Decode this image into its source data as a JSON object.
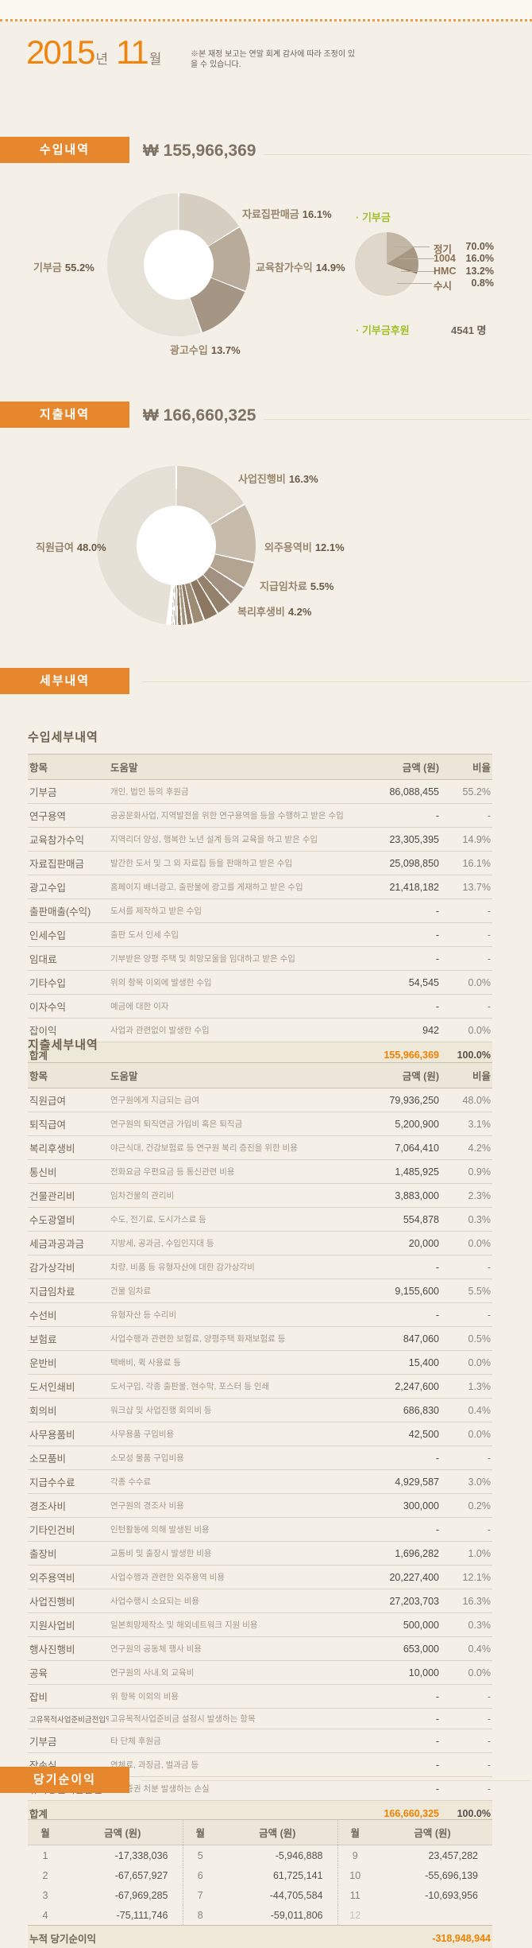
{
  "header": {
    "year": "2015",
    "year_suffix": "년",
    "month": "11",
    "month_suffix": "월",
    "note": "※본 재정 보고는 연말 회계 감사에 따라 조정이 있을 수 있습니다."
  },
  "income": {
    "heading": "수입내역",
    "total": "₩ 155,966,369",
    "donors_pie_label": "· 기부금",
    "donors_count_label": "· 기부금후원",
    "donors_count": "4541 명"
  },
  "expense": {
    "heading": "지출내역",
    "total": "₩ 166,660,325"
  },
  "details": {
    "heading": "세부내역",
    "income_title": "수입세부내역",
    "expense_title": "지출세부내역",
    "columns": [
      "항목",
      "도움말",
      "금액 (원)",
      "비율"
    ],
    "income_rows": [
      [
        "기부금",
        "개인, 법인 등의 후원금",
        "86,088,455",
        "55.2%"
      ],
      [
        "연구용역",
        "공공문화사업, 지역발전을 위한 연구용역을 등을 수행하고 받은 수입",
        "-",
        "-"
      ],
      [
        "교육참가수익",
        "지역리더 양성, 행복한 노년 설계 등의 교육을 하고 받은 수입",
        "23,305,395",
        "14.9%"
      ],
      [
        "자료집판매금",
        "발간한 도서 및 그 외 자료집 등을 판매하고 받은 수입",
        "25,098,850",
        "16.1%"
      ],
      [
        "광고수입",
        "홈페이지 배너광고, 출판물에 광고를 게재하고 받은 수입",
        "21,418,182",
        "13.7%"
      ],
      [
        "출판매출(수익)",
        "도서를 제작하고 받은 수입",
        "-",
        "-"
      ],
      [
        "인세수입",
        "출판 도서 인세 수입",
        "-",
        "-"
      ],
      [
        "임대료",
        "기부받은 양평 주택 및 희망모울을 임대하고 받은 수입",
        "-",
        "-"
      ],
      [
        "기타수입",
        "위의 항목 이외에 발생한 수입",
        "54,545",
        "0.0%"
      ],
      [
        "이자수익",
        "예금에 대한 이자",
        "-",
        "-"
      ],
      [
        "잡이익",
        "사업과 관련없이 발생한 수입",
        "942",
        "0.0%"
      ]
    ],
    "income_total": [
      "합계",
      "155,966,369",
      "100.0%"
    ],
    "expense_rows": [
      [
        "직원급여",
        "연구원에게 지급되는 급여",
        "79,936,250",
        "48.0%"
      ],
      [
        "퇴직급여",
        "연구원의 퇴직연금 가입비 혹은 퇴직금",
        "5,200,900",
        "3.1%"
      ],
      [
        "복리후생비",
        "야근식대, 건강보험료 등 연구원 복리 증진을 위한 비용",
        "7,064,410",
        "4.2%"
      ],
      [
        "통신비",
        "전화요금 우편요금 등 통신관련 비용",
        "1,485,925",
        "0.9%"
      ],
      [
        "건물관리비",
        "임차건물의 관리비",
        "3,883,000",
        "2.3%"
      ],
      [
        "수도광열비",
        "수도, 전기료, 도시가스료 등",
        "554,878",
        "0.3%"
      ],
      [
        "세금과공과금",
        "지방세, 공과금, 수입인지대 등",
        "20,000",
        "0.0%"
      ],
      [
        "감가상각비",
        "차량, 비품 등 유형자산에 대한 감가상각비",
        "-",
        "-"
      ],
      [
        "지급임차료",
        "건물 임차료",
        "9,155,600",
        "5.5%"
      ],
      [
        "수선비",
        "유형자산 등 수리비",
        "-",
        "-"
      ],
      [
        "보험료",
        "사업수행과 관련한 보험료, 양평주택 화재보험료 등",
        "847,060",
        "0.5%"
      ],
      [
        "운반비",
        "택배비, 퀵 사용료 등",
        "15,400",
        "0.0%"
      ],
      [
        "도서인쇄비",
        "도서구입, 각종 출판물, 현수막, 포스터 등 인쇄",
        "2,247,600",
        "1.3%"
      ],
      [
        "회의비",
        "워크샵 및 사업진행 회의비 등",
        "686,830",
        "0.4%"
      ],
      [
        "사무용품비",
        "사무용품 구입비용",
        "42,500",
        "0.0%"
      ],
      [
        "소모품비",
        "소모성 물품 구입비용",
        "-",
        "-"
      ],
      [
        "지급수수료",
        "각종 수수료",
        "4,929,587",
        "3.0%"
      ],
      [
        "경조사비",
        "연구원의 경조사 비용",
        "300,000",
        "0.2%"
      ],
      [
        "기타인건비",
        "인턴활동에 의해 발생된 비용",
        "-",
        "-"
      ],
      [
        "출장비",
        "교통비 및 출장시 발생한 비용",
        "1,696,282",
        "1.0%"
      ],
      [
        "외주용역비",
        "사업수행과 관련한 외주용역 비용",
        "20,227,400",
        "12.1%"
      ],
      [
        "사업진행비",
        "사업수행시 소요되는 비용",
        "27,203,703",
        "16.3%"
      ],
      [
        "지원사업비",
        "일본희망제작소 및 해외네트워크 지원 비용",
        "500,000",
        "0.3%"
      ],
      [
        "행사진행비",
        "연구원의 공동체 행사 비용",
        "653,000",
        "0.4%"
      ],
      [
        "공육",
        "연구원의 사내.외 교육비",
        "10,000",
        "0.0%"
      ],
      [
        "잡비",
        "위 항목 이외의 비용",
        "-",
        "-"
      ],
      [
        "고유목적사업준비금전입액",
        "고유목적사업준비금 설정시 발생하는 항목",
        "-",
        "-"
      ],
      [
        "기부금",
        "타 단체 후원금",
        "-",
        "-"
      ],
      [
        "잡손실",
        "연체료, 과징금, 벌과금 등",
        "-",
        "-"
      ],
      [
        "유가증권처분손실",
        "유가증권 처분 발생하는 손실",
        "-",
        "-"
      ]
    ],
    "expense_total": [
      "합계",
      "166,660,325",
      "100.0%"
    ]
  },
  "net": {
    "heading": "당기순이익",
    "columns": [
      "월",
      "금액 (원)",
      "월",
      "금액 (원)",
      "월",
      "금액 (원)"
    ],
    "rows": [
      [
        "1",
        "-17,338,036",
        "5",
        "-5,946,888",
        "9",
        "23,457,282"
      ],
      [
        "2",
        "-67,657,927",
        "6",
        "61,725,141",
        "10",
        "-55,696,139"
      ],
      [
        "3",
        "-67,969,285",
        "7",
        "-44,705,584",
        "11",
        "-10,693,956"
      ],
      [
        "4",
        "-75,111,746",
        "8",
        "-59,011,806",
        "12",
        ""
      ]
    ],
    "cumulative_label": "누적 당기순이익",
    "cumulative_value": "-318,948,944"
  },
  "colors": {
    "accent_orange": "#ee8511",
    "badge_orange": "#e6862d",
    "green": "#a0bf2c",
    "total_orange": "#ee8200",
    "background": "#f5f0e7"
  },
  "chart_data": [
    {
      "type": "donut",
      "title": "수입내역",
      "total_value": 155966369,
      "unit": "%",
      "categories": [
        "자료집판매금",
        "교육참가수익",
        "광고수입",
        "기부금"
      ],
      "values": [
        16.1,
        14.9,
        13.7,
        55.2
      ],
      "colors": [
        "#d6cec1",
        "#b9ab9a",
        "#a49585",
        "#e7e2d8"
      ],
      "rotate": 0,
      "gap": 0.5
    },
    {
      "type": "pie",
      "title": "기부금",
      "unit": "%",
      "categories": [
        "정기",
        "1004",
        "HMC",
        "수시"
      ],
      "values": [
        70.0,
        16.0,
        13.2,
        0.8
      ],
      "colors": [
        "#ded7ca",
        "#c2b6a5",
        "#a79884",
        "#8d7b64"
      ],
      "rotate": 108,
      "gap": 0
    },
    {
      "type": "donut",
      "title": "지출내역",
      "total_value": 166660325,
      "unit": "%",
      "categories": [
        "사업진행비",
        "외주용역비",
        "지급임차료",
        "복리후생비",
        "퇴직급여",
        "지급수수료",
        "건물관리비",
        "도서인쇄비",
        "출장비",
        "통신비",
        "보험료",
        "행사진행비",
        "회의비",
        "수도광열비",
        "지원사업비",
        "경조사비",
        "직원급여"
      ],
      "values": [
        16.3,
        12.1,
        5.5,
        4.2,
        3.1,
        3.0,
        2.3,
        1.3,
        1.0,
        0.9,
        0.5,
        0.4,
        0.4,
        0.3,
        0.3,
        0.2,
        48.0
      ],
      "colors": [
        "#d9d1c4",
        "#c7bcac",
        "#b3a492",
        "#a29180",
        "#93816b",
        "#8b7760",
        "#9e8b74",
        "#8f7b63",
        "#a4917a",
        "#877257",
        "#998366",
        "#8d785e",
        "#a28f75",
        "#867158",
        "#96815f",
        "#8a755a",
        "#e6e1d6"
      ],
      "rotate": 0,
      "gap": 0.6
    }
  ]
}
